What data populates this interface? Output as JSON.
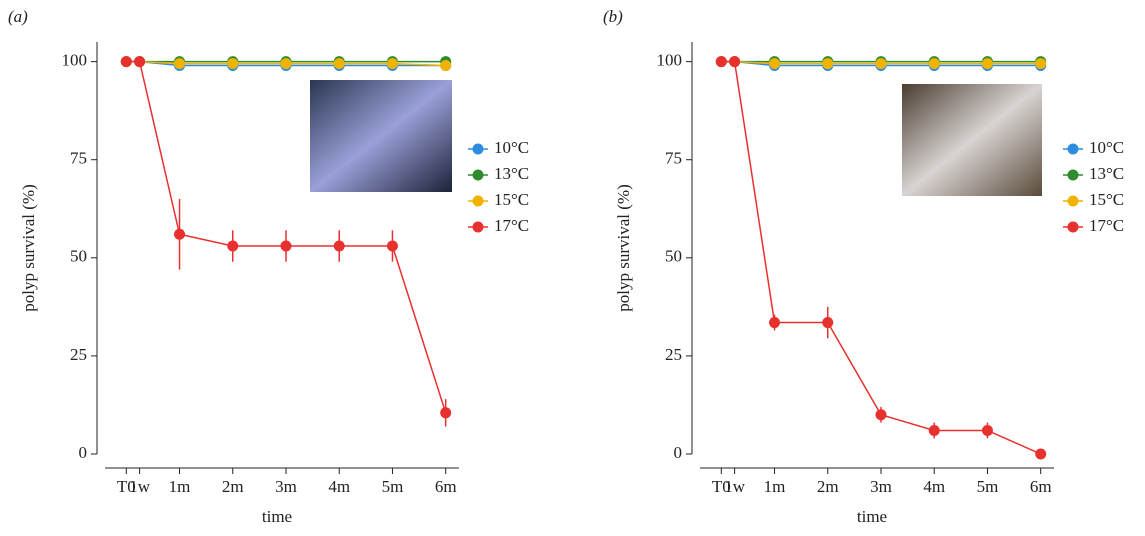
{
  "chart_data": [
    {
      "type": "line",
      "panel_label": "(a)",
      "ylabel": "polyp survival (%)",
      "xlabel": "time",
      "x": [
        0,
        0.25,
        1,
        2,
        3,
        4,
        5,
        6
      ],
      "xlim": [
        -0.4,
        6.25
      ],
      "ylim": [
        0,
        105
      ],
      "xticks": [
        {
          "value": 0,
          "label": "T0"
        },
        {
          "value": 0.25,
          "label": "1w"
        },
        {
          "value": 1,
          "label": "1m"
        },
        {
          "value": 2,
          "label": "2m"
        },
        {
          "value": 3,
          "label": "3m"
        },
        {
          "value": 4,
          "label": "4m"
        },
        {
          "value": 5,
          "label": "5m"
        },
        {
          "value": 6,
          "label": "6m"
        }
      ],
      "yticks": [
        0,
        25,
        50,
        75,
        100
      ],
      "series": [
        {
          "name": "10°C",
          "color": "#2b8ce0",
          "values": [
            100,
            100,
            99,
            99,
            99,
            99,
            99,
            99
          ]
        },
        {
          "name": "13°C",
          "color": "#2e8b2e",
          "values": [
            100,
            100,
            100,
            100,
            100,
            100,
            100,
            100
          ]
        },
        {
          "name": "15°C",
          "color": "#f0b400",
          "values": [
            100,
            100,
            99.5,
            99.5,
            99.5,
            99.5,
            99.5,
            99
          ]
        },
        {
          "name": "17°C",
          "color": "#e8302e",
          "values": [
            100,
            100,
            56,
            53,
            53,
            53,
            53,
            10.5
          ],
          "errors": [
            null,
            null,
            9,
            4,
            4,
            4,
            4,
            3.5
          ]
        }
      ]
    },
    {
      "type": "line",
      "panel_label": "(b)",
      "ylabel": "polyp survival (%)",
      "xlabel": "time",
      "x": [
        0,
        0.25,
        1,
        2,
        3,
        4,
        5,
        6
      ],
      "xlim": [
        -0.4,
        6.25
      ],
      "ylim": [
        0,
        105
      ],
      "xticks": [
        {
          "value": 0,
          "label": "T0"
        },
        {
          "value": 0.25,
          "label": "1w"
        },
        {
          "value": 1,
          "label": "1m"
        },
        {
          "value": 2,
          "label": "2m"
        },
        {
          "value": 3,
          "label": "3m"
        },
        {
          "value": 4,
          "label": "4m"
        },
        {
          "value": 5,
          "label": "5m"
        },
        {
          "value": 6,
          "label": "6m"
        }
      ],
      "yticks": [
        0,
        25,
        50,
        75,
        100
      ],
      "series": [
        {
          "name": "10°C",
          "color": "#2b8ce0",
          "values": [
            100,
            100,
            99,
            99,
            99,
            99,
            99,
            99
          ]
        },
        {
          "name": "13°C",
          "color": "#2e8b2e",
          "values": [
            100,
            100,
            100,
            100,
            100,
            100,
            100,
            100
          ]
        },
        {
          "name": "15°C",
          "color": "#f0b400",
          "values": [
            100,
            100,
            99.5,
            99.5,
            99.5,
            99.5,
            99.5,
            99.5
          ]
        },
        {
          "name": "17°C",
          "color": "#e8302e",
          "values": [
            100,
            100,
            33.5,
            33.5,
            10,
            6,
            6,
            0
          ],
          "errors": [
            null,
            null,
            2,
            4,
            2,
            2,
            2,
            null
          ]
        }
      ]
    }
  ]
}
